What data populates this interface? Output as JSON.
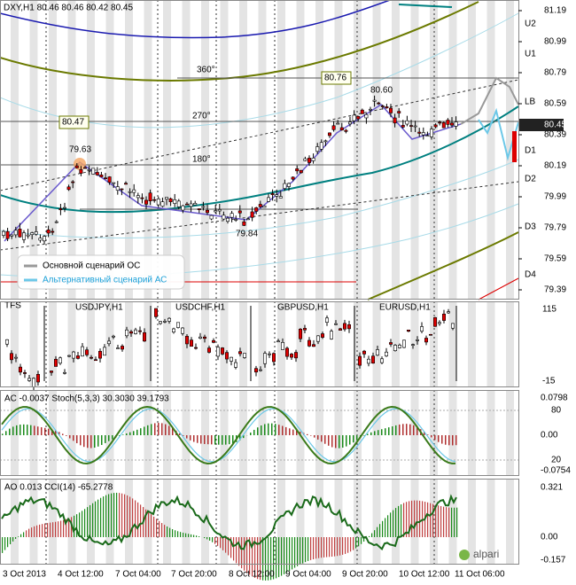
{
  "main_panel": {
    "title": "DXY,H1  80.46 80.46 80.42 80.45",
    "price_labels": [
      "81.19",
      "80.99",
      "80.79",
      "80.59",
      "80.39",
      "80.19",
      "79.99",
      "79.79",
      "79.59",
      "79.39"
    ],
    "level_labels": [
      "U2",
      "U1",
      "LB",
      "D1",
      "D2",
      "D3",
      "D4"
    ],
    "current_price": "80.45",
    "annotations": [
      "360°",
      "270°",
      "180°",
      "79.63",
      "79.84",
      "80.60"
    ],
    "boxes": [
      "80.76",
      "80.47"
    ],
    "legend": [
      "Основной сценарий ОС",
      "Альтернативный сценарий АС"
    ]
  },
  "tfs_panel": {
    "labels": [
      "TFS",
      "USDJPY,H1",
      "USDCHF,H1",
      "GBPUSD,H1",
      "EURUSD,H1"
    ],
    "axis": [
      "115",
      "-15"
    ]
  },
  "ac_panel": {
    "title": "AC -0.0037  Stoch(5,3,3) 30.3030 39.1793",
    "axis": [
      "0.0798",
      "80",
      "0.00",
      "20",
      "-0.0754"
    ]
  },
  "ao_panel": {
    "title": "AO 0.013  CCI(14) -65.2778",
    "axis": [
      "0.321",
      "0.00",
      "-0.157"
    ]
  },
  "time_axis": [
    "3 Oct 2013",
    "4 Oct 12:00",
    "7 Oct 04:00",
    "7 Oct 20:00",
    "8 Oct 12:00",
    "9 Oct 04:00",
    "9 Oct 20:00",
    "10 Oct 12:00",
    "11 Oct 06:00"
  ],
  "logo": "alpari"
}
